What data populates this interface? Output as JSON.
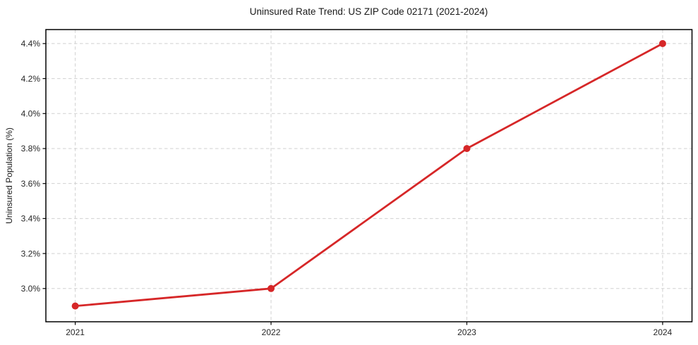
{
  "figure": {
    "title": "Uninsured Rate Trend: US ZIP Code 02171 (2021-2024)"
  },
  "chart_data": {
    "type": "line",
    "title": "Uninsured Rate Trend: US ZIP Code 02171 (2021-2024)",
    "xlabel": "",
    "ylabel": "Uninsured Population (%)",
    "x": [
      2021,
      2022,
      2023,
      2024
    ],
    "series": [
      {
        "name": "Uninsured Population (%)",
        "values": [
          2.9,
          3.0,
          3.8,
          4.4
        ],
        "color": "#d62728",
        "marker": "circle"
      }
    ],
    "x_ticks": [
      2021,
      2022,
      2023,
      2024
    ],
    "x_tick_labels": [
      "2021",
      "2022",
      "2023",
      "2024"
    ],
    "y_ticks": [
      3.0,
      3.2,
      3.4,
      3.6,
      3.8,
      4.0,
      4.2,
      4.4
    ],
    "y_tick_labels": [
      "3.0%",
      "3.2%",
      "3.4%",
      "3.6%",
      "3.8%",
      "4.0%",
      "4.2%",
      "4.4%"
    ],
    "xlim": [
      2020.85,
      2024.15
    ],
    "ylim": [
      2.81,
      4.48
    ],
    "grid": true,
    "grid_style": "dashed",
    "legend_position": "none"
  },
  "colors": {
    "line": "#d62728",
    "grid": "#d0d0d0",
    "spine": "#000000",
    "text": "#1a1a1a",
    "background": "#ffffff"
  }
}
